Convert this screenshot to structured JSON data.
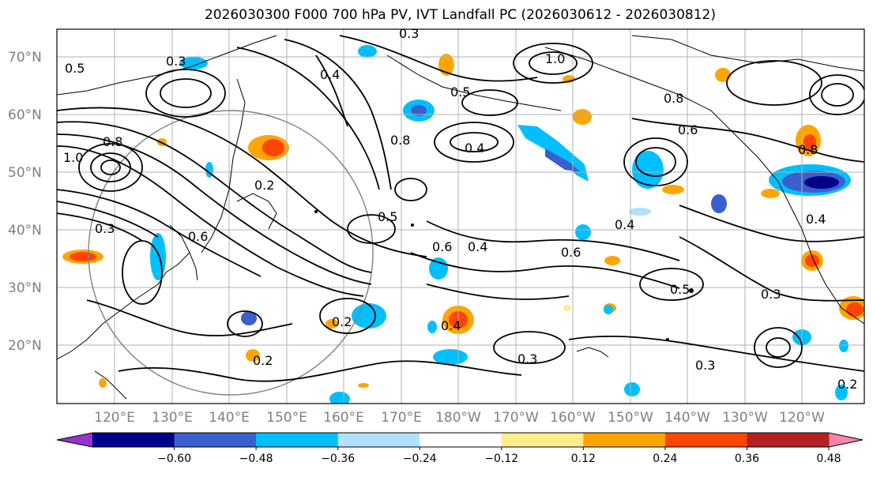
{
  "title": "2026030300 F000 700 hPa PV, IVT Landfall PC (2026030612 - 2026030812)",
  "lat_labels": [
    "70°N",
    "60°N",
    "50°N",
    "40°N",
    "30°N",
    "20°N"
  ],
  "lat_values": [
    70,
    60,
    50,
    40,
    30,
    20
  ],
  "lon_labels": [
    "120°E",
    "130°E",
    "140°E",
    "150°E",
    "160°E",
    "170°E",
    "180°W",
    "170°W",
    "160°W",
    "150°W",
    "140°W",
    "130°W",
    "120°W"
  ],
  "lon_values": [
    120,
    130,
    140,
    150,
    160,
    170,
    180,
    190,
    200,
    210,
    220,
    230,
    240
  ],
  "map_extent": {
    "lon_min": 111,
    "lon_max": 252,
    "lat_min": 10,
    "lat_max": 75
  },
  "colorbar": {
    "colors": [
      "#9932cc",
      "#00008b",
      "#3a5fcd",
      "#00bfff",
      "#b0e2ff",
      "#ffffff",
      "#ffec8b",
      "#ffa500",
      "#ff4500",
      "#b22222",
      "#ff82ab"
    ],
    "tick_labels": [
      "−0.60",
      "−0.48",
      "−0.36",
      "−0.24",
      "−0.12",
      "0.12",
      "0.24",
      "0.36",
      "0.48",
      "0.60"
    ]
  },
  "contour_labels": [
    "0.3",
    "0.5",
    "0.8",
    "1.0",
    "0.6",
    "0.4",
    "0.2",
    "0.3",
    "0.5",
    "0.6",
    "0.8",
    "1.0",
    "0.4",
    "0.8",
    "0.5",
    "0.4",
    "0.2",
    "0.4",
    "0.3",
    "0.6",
    "0.3",
    "0.2",
    "0.4",
    "0.5",
    "0.6",
    "0.8",
    "0.4",
    "0.3",
    "0.3",
    "0.2"
  ],
  "colors": {
    "contour": "#000000",
    "grid": "#b0b0b0",
    "axis_label": "#808080",
    "circle": "#808080"
  }
}
